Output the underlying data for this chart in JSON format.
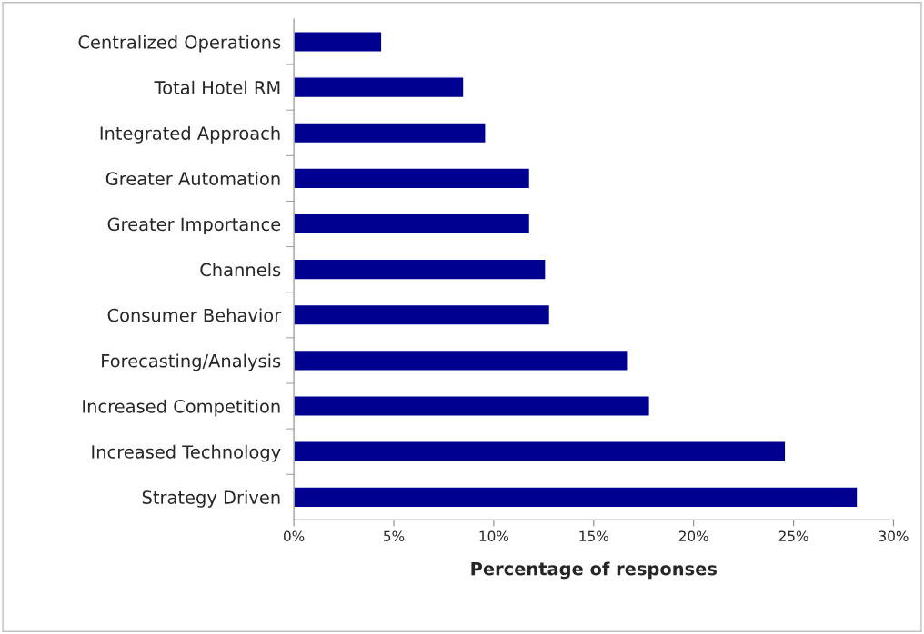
{
  "chart_data": {
    "type": "bar",
    "orientation": "horizontal",
    "xlabel": "Percentage of responses",
    "categories": [
      "Centralized Operations",
      "Total Hotel RM",
      "Integrated Approach",
      "Greater Automation",
      "Greater Importance",
      "Channels",
      "Consumer Behavior",
      "Forecasting/Analysis",
      "Increased Competition",
      "Increased Technology",
      "Strategy Driven"
    ],
    "values": [
      4.4,
      8.5,
      9.6,
      11.8,
      11.8,
      12.6,
      12.8,
      16.7,
      17.8,
      24.6,
      28.2
    ],
    "color": "#000090",
    "xlim": [
      0,
      30
    ],
    "xticks": [
      {
        "value": 0,
        "label": "0%"
      },
      {
        "value": 5,
        "label": "5%"
      },
      {
        "value": 10,
        "label": "10%"
      },
      {
        "value": 15,
        "label": "15%"
      },
      {
        "value": 20,
        "label": "20%"
      },
      {
        "value": 25,
        "label": "25%"
      },
      {
        "value": 30,
        "label": "30%"
      }
    ],
    "grid": false,
    "legend": false
  }
}
